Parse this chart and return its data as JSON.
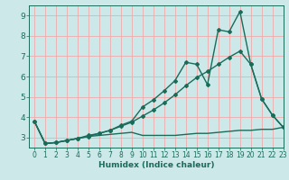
{
  "title": "",
  "xlabel": "Humidex (Indice chaleur)",
  "xlim": [
    -0.5,
    23
  ],
  "ylim": [
    2.5,
    9.5
  ],
  "yticks": [
    3,
    4,
    5,
    6,
    7,
    8,
    9
  ],
  "xticks": [
    0,
    1,
    2,
    3,
    4,
    5,
    6,
    7,
    8,
    9,
    10,
    11,
    12,
    13,
    14,
    15,
    16,
    17,
    18,
    19,
    20,
    21,
    22,
    23
  ],
  "background_color": "#cce8e8",
  "grid_color": "#f0aaaa",
  "line_color": "#1a6b5a",
  "figsize": [
    3.2,
    2.0
  ],
  "dpi": 100,
  "series": [
    {
      "x": [
        0,
        1,
        2,
        3,
        4,
        5,
        6,
        7,
        8,
        9,
        10,
        11,
        12,
        13,
        14,
        15,
        16,
        17,
        18,
        19,
        20,
        21,
        22,
        23
      ],
      "y": [
        3.8,
        2.7,
        2.75,
        2.85,
        2.95,
        3.05,
        3.1,
        3.15,
        3.2,
        3.25,
        3.1,
        3.1,
        3.1,
        3.1,
        3.15,
        3.2,
        3.2,
        3.25,
        3.3,
        3.35,
        3.35,
        3.4,
        3.4,
        3.5
      ],
      "marker": false,
      "lw": 1.0
    },
    {
      "x": [
        0,
        1,
        2,
        3,
        4,
        5,
        6,
        7,
        8,
        9,
        10,
        11,
        12,
        13,
        14,
        15,
        16,
        17,
        18,
        19,
        20,
        21,
        22,
        23
      ],
      "y": [
        3.8,
        2.7,
        2.75,
        2.85,
        2.95,
        3.1,
        3.2,
        3.35,
        3.6,
        3.8,
        4.5,
        4.85,
        5.3,
        5.8,
        6.7,
        6.6,
        5.6,
        8.3,
        8.2,
        9.2,
        6.6,
        4.9,
        4.1,
        3.5
      ],
      "marker": true,
      "lw": 1.0
    },
    {
      "x": [
        0,
        1,
        2,
        3,
        4,
        5,
        6,
        7,
        8,
        9,
        10,
        11,
        12,
        13,
        14,
        15,
        16,
        17,
        18,
        19,
        20,
        21,
        22,
        23
      ],
      "y": [
        3.8,
        2.7,
        2.75,
        2.85,
        2.95,
        3.05,
        3.2,
        3.35,
        3.55,
        3.75,
        4.05,
        4.35,
        4.7,
        5.1,
        5.55,
        5.95,
        6.25,
        6.6,
        6.95,
        7.25,
        6.6,
        4.9,
        4.1,
        3.5
      ],
      "marker": true,
      "lw": 1.0
    }
  ]
}
